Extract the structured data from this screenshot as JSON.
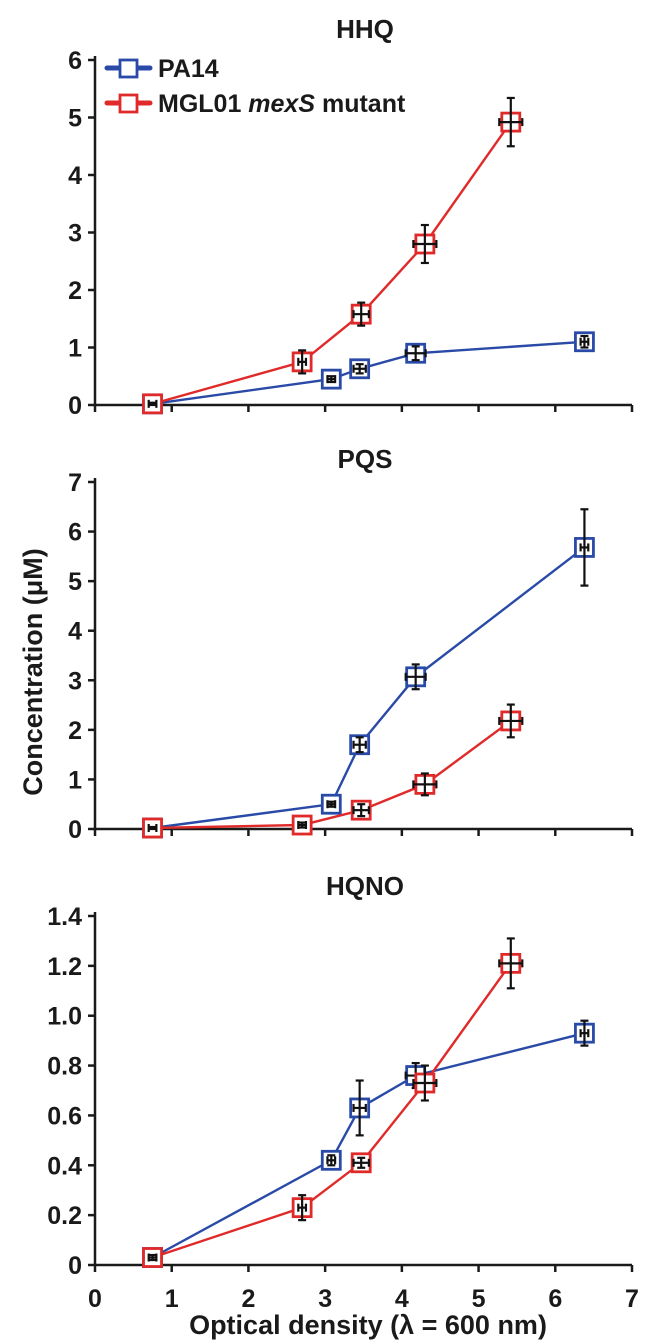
{
  "chart_data": [
    {
      "type": "line",
      "title": "HHQ",
      "xlim": [
        0,
        7
      ],
      "ylim": [
        0,
        6
      ],
      "yticks": [
        "0",
        "1",
        "2",
        "3",
        "4",
        "5",
        "6"
      ],
      "ytick_values": [
        0,
        1,
        2,
        3,
        4,
        5,
        6
      ],
      "legend": {
        "placement": "top-left"
      },
      "series": [
        {
          "name": "PA14",
          "color": "#2a4aa8",
          "points": [
            {
              "x": 0.75,
              "y": 0.02,
              "xerr": 0.05,
              "yerr": 0.02
            },
            {
              "x": 3.08,
              "y": 0.45,
              "xerr": 0.05,
              "yerr": 0.05
            },
            {
              "x": 3.45,
              "y": 0.63,
              "xerr": 0.08,
              "yerr": 0.08
            },
            {
              "x": 4.18,
              "y": 0.9,
              "xerr": 0.13,
              "yerr": 0.12
            },
            {
              "x": 6.38,
              "y": 1.1,
              "xerr": 0.05,
              "yerr": 0.1
            }
          ]
        },
        {
          "name_prefix": "MGL01 ",
          "name_italic": "mexS",
          "name_suffix": " mutant",
          "color": "#e02a2a",
          "points": [
            {
              "x": 0.75,
              "y": 0.02,
              "xerr": 0.05,
              "yerr": 0.02
            },
            {
              "x": 2.7,
              "y": 0.75,
              "xerr": 0.05,
              "yerr": 0.2
            },
            {
              "x": 3.47,
              "y": 1.58,
              "xerr": 0.1,
              "yerr": 0.2
            },
            {
              "x": 4.3,
              "y": 2.8,
              "xerr": 0.15,
              "yerr": 0.33
            },
            {
              "x": 5.42,
              "y": 4.92,
              "xerr": 0.15,
              "yerr": 0.42
            }
          ]
        }
      ]
    },
    {
      "type": "line",
      "title": "PQS",
      "xlim": [
        0,
        7
      ],
      "ylim": [
        0,
        7
      ],
      "yticks": [
        "0",
        "1",
        "2",
        "3",
        "4",
        "5",
        "6",
        "7"
      ],
      "ytick_values": [
        0,
        1,
        2,
        3,
        4,
        5,
        6,
        7
      ],
      "series": [
        {
          "name": "PA14",
          "color": "#2a4aa8",
          "points": [
            {
              "x": 0.75,
              "y": 0.02,
              "xerr": 0.05,
              "yerr": 0.02
            },
            {
              "x": 3.08,
              "y": 0.5,
              "xerr": 0.05,
              "yerr": 0.05
            },
            {
              "x": 3.45,
              "y": 1.7,
              "xerr": 0.08,
              "yerr": 0.15
            },
            {
              "x": 4.18,
              "y": 3.07,
              "xerr": 0.13,
              "yerr": 0.25
            },
            {
              "x": 6.38,
              "y": 5.68,
              "xerr": 0.05,
              "yerr": 0.77
            }
          ]
        },
        {
          "name": "MGL01 mexS mutant",
          "color": "#e02a2a",
          "points": [
            {
              "x": 0.75,
              "y": 0.02,
              "xerr": 0.05,
              "yerr": 0.02
            },
            {
              "x": 2.7,
              "y": 0.08,
              "xerr": 0.05,
              "yerr": 0.05
            },
            {
              "x": 3.47,
              "y": 0.38,
              "xerr": 0.1,
              "yerr": 0.12
            },
            {
              "x": 4.3,
              "y": 0.9,
              "xerr": 0.15,
              "yerr": 0.22
            },
            {
              "x": 5.42,
              "y": 2.18,
              "xerr": 0.15,
              "yerr": 0.33
            }
          ]
        }
      ]
    },
    {
      "type": "line",
      "title": "HQNO",
      "xlim": [
        0,
        7
      ],
      "ylim": [
        0,
        1.4
      ],
      "yticks": [
        "0",
        "0.2",
        "0.4",
        "0.6",
        "0.8",
        "1.0",
        "1.2",
        "1.4"
      ],
      "ytick_values": [
        0,
        0.2,
        0.4,
        0.6,
        0.8,
        1.0,
        1.2,
        1.4
      ],
      "xticks": [
        "0",
        "1",
        "2",
        "3",
        "4",
        "5",
        "6",
        "7"
      ],
      "xtick_values": [
        0,
        1,
        2,
        3,
        4,
        5,
        6,
        7
      ],
      "series": [
        {
          "name": "PA14",
          "color": "#2a4aa8",
          "points": [
            {
              "x": 0.75,
              "y": 0.03,
              "xerr": 0.05,
              "yerr": 0.01
            },
            {
              "x": 3.08,
              "y": 0.42,
              "xerr": 0.05,
              "yerr": 0.02
            },
            {
              "x": 3.45,
              "y": 0.63,
              "xerr": 0.08,
              "yerr": 0.11
            },
            {
              "x": 4.18,
              "y": 0.76,
              "xerr": 0.13,
              "yerr": 0.05
            },
            {
              "x": 6.38,
              "y": 0.93,
              "xerr": 0.05,
              "yerr": 0.05
            }
          ]
        },
        {
          "name": "MGL01 mexS mutant",
          "color": "#e02a2a",
          "points": [
            {
              "x": 0.75,
              "y": 0.03,
              "xerr": 0.05,
              "yerr": 0.01
            },
            {
              "x": 2.7,
              "y": 0.23,
              "xerr": 0.05,
              "yerr": 0.05
            },
            {
              "x": 3.47,
              "y": 0.41,
              "xerr": 0.1,
              "yerr": 0.02
            },
            {
              "x": 4.3,
              "y": 0.73,
              "xerr": 0.15,
              "yerr": 0.07
            },
            {
              "x": 5.42,
              "y": 1.21,
              "xerr": 0.15,
              "yerr": 0.1
            }
          ]
        }
      ]
    }
  ],
  "xlabel": "Optical density (λ = 600 nm)",
  "ylabel": "Concentration (μM)",
  "legend": {
    "series1": "PA14",
    "series2_prefix": "MGL01 ",
    "series2_italic": "mexS",
    "series2_suffix": " mutant",
    "series1_color": "#2a4aa8",
    "series2_color": "#e02a2a"
  }
}
